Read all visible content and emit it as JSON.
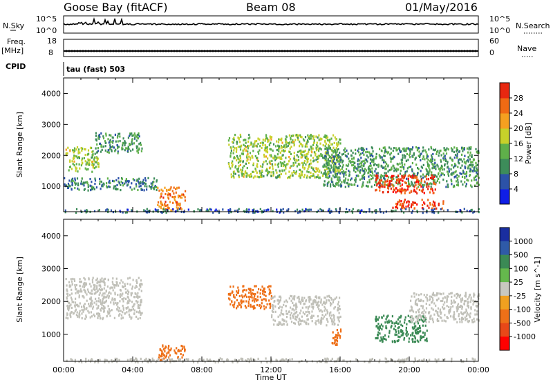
{
  "header": {
    "station": "Goose Bay (fitACF)",
    "beam": "Beam 08",
    "date": "01/May/2016"
  },
  "panels": {
    "nsky_label": "N.Sky",
    "nsky_ticks": [
      "10^5",
      "10^0"
    ],
    "nsearch_label": "N.Search",
    "nsearch_ticks": [
      "10^5",
      "10^0"
    ],
    "freq_label": "Freq.",
    "freq_unit": "[MHz]",
    "freq_ticks": [
      "18",
      "8"
    ],
    "nave_label": "Nave",
    "nave_ticks": [
      "60",
      "0"
    ],
    "cpid_label": "CPID",
    "cpid_text": "tau (fast) 503"
  },
  "colors": {
    "power": [
      "#0f1ee6",
      "#2c52a8",
      "#3d8c5a",
      "#5fb04a",
      "#c7d12a",
      "#f5a020",
      "#f06a14",
      "#e82810",
      "#ff0000"
    ],
    "velocity": [
      "#1a2ea0",
      "#2f5aa8",
      "#3b8a55",
      "#65b84d",
      "#c8c8c0",
      "#d8d8d0",
      "#f0a020",
      "#ee7018",
      "#e84818",
      "#ff0000"
    ],
    "ground_scatter": "#c0c0b8"
  },
  "chart_data": [
    {
      "type": "heatmap",
      "name": "power",
      "ylabel": "Slant Range [km]",
      "ylim": [
        180,
        4500
      ],
      "yticks": [
        1000,
        2000,
        3000,
        4000
      ],
      "xlim": [
        0,
        24
      ],
      "colorbar": {
        "label": "Power [dB]",
        "range": [
          0,
          32
        ],
        "ticks": [
          4,
          8,
          12,
          16,
          20,
          24,
          28
        ]
      },
      "scatter_regions": [
        {
          "t_start": 0.1,
          "t_end": 2.0,
          "r_start": 1500,
          "r_end": 2300,
          "value": 14
        },
        {
          "t_start": 1.8,
          "t_end": 4.5,
          "r_start": 2100,
          "r_end": 2750,
          "value": 10
        },
        {
          "t_start": 0.0,
          "t_end": 5.5,
          "r_start": 900,
          "r_end": 1300,
          "value": 8
        },
        {
          "t_start": 5.4,
          "t_end": 7.0,
          "r_start": 250,
          "r_end": 1000,
          "value": 22
        },
        {
          "t_start": 9.5,
          "t_end": 16.0,
          "r_start": 1300,
          "r_end": 2700,
          "value": 14
        },
        {
          "t_start": 15.0,
          "t_end": 24.0,
          "r_start": 1000,
          "r_end": 2300,
          "value": 10
        },
        {
          "t_start": 18.0,
          "t_end": 21.5,
          "r_start": 800,
          "r_end": 1400,
          "value": 26
        },
        {
          "t_start": 19.0,
          "t_end": 22.0,
          "r_start": 300,
          "r_end": 600,
          "value": 26
        },
        {
          "t_start": 0.0,
          "t_end": 24.0,
          "r_start": 180,
          "r_end": 300,
          "value": 6
        }
      ]
    },
    {
      "type": "heatmap",
      "name": "velocity",
      "ylabel": "Slant Range [km]",
      "xlabel": "Time UT",
      "ylim": [
        180,
        4500
      ],
      "yticks": [
        1000,
        2000,
        3000,
        4000
      ],
      "xlim": [
        0,
        24
      ],
      "xticks": [
        "00:00",
        "04:00",
        "08:00",
        "12:00",
        "16:00",
        "20:00",
        "00:00"
      ],
      "colorbar": {
        "label": "Velocity [m s^-1]",
        "ticks": [
          1000,
          500,
          100,
          25,
          -25,
          -100,
          -500,
          -1000
        ]
      },
      "scatter_regions": [
        {
          "t_start": 0.1,
          "t_end": 4.5,
          "r_start": 1500,
          "r_end": 2750,
          "value": 0,
          "ground": true
        },
        {
          "t_start": 5.4,
          "t_end": 7.0,
          "r_start": 250,
          "r_end": 700,
          "value": -300
        },
        {
          "t_start": 9.5,
          "t_end": 12.0,
          "r_start": 1800,
          "r_end": 2500,
          "value": -400
        },
        {
          "t_start": 12.0,
          "t_end": 16.0,
          "r_start": 1300,
          "r_end": 2200,
          "value": 0,
          "ground": true
        },
        {
          "t_start": 15.5,
          "t_end": 16.0,
          "r_start": 500,
          "r_end": 1200,
          "value": -300
        },
        {
          "t_start": 18.0,
          "t_end": 21.0,
          "r_start": 800,
          "r_end": 1600,
          "value": 150
        },
        {
          "t_start": 20.0,
          "t_end": 24.0,
          "r_start": 1400,
          "r_end": 2300,
          "value": 0,
          "ground": true
        },
        {
          "t_start": 0.0,
          "t_end": 24.0,
          "r_start": 180,
          "r_end": 300,
          "value": 0,
          "ground": true
        }
      ]
    }
  ]
}
